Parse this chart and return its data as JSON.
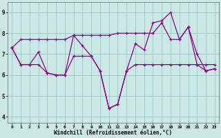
{
  "xlabel": "Windchill (Refroidissement éolien,°C)",
  "background_color": "#cce8e4",
  "line_color": "#880088",
  "grid_color": "#99cccc",
  "x_ticks": [
    0,
    1,
    2,
    3,
    4,
    5,
    6,
    7,
    8,
    9,
    10,
    11,
    12,
    13,
    14,
    15,
    16,
    17,
    18,
    19,
    20,
    21,
    22,
    23
  ],
  "y_ticks": [
    4,
    5,
    6,
    7,
    8,
    9
  ],
  "ylim": [
    3.7,
    9.5
  ],
  "xlim": [
    -0.5,
    23.5
  ],
  "line1": [
    7.3,
    6.5,
    6.5,
    7.1,
    6.1,
    6.0,
    6.0,
    7.9,
    7.4,
    6.9,
    6.2,
    4.4,
    4.6,
    6.2,
    7.5,
    7.2,
    8.5,
    8.6,
    9.0,
    7.7,
    8.3,
    7.0,
    6.2,
    6.3
  ],
  "line2": [
    7.3,
    7.7,
    7.7,
    7.7,
    7.7,
    7.7,
    7.7,
    7.9,
    7.9,
    7.9,
    7.9,
    7.9,
    8.0,
    8.0,
    8.0,
    8.0,
    8.0,
    8.5,
    7.7,
    7.7,
    8.3,
    6.5,
    6.5,
    6.5
  ],
  "line3": [
    7.3,
    6.5,
    6.5,
    6.5,
    6.1,
    6.0,
    6.0,
    6.9,
    6.9,
    6.9,
    6.2,
    4.4,
    4.6,
    6.2,
    6.5,
    6.5,
    6.5,
    6.5,
    6.5,
    6.5,
    6.5,
    6.5,
    6.2,
    6.3
  ]
}
